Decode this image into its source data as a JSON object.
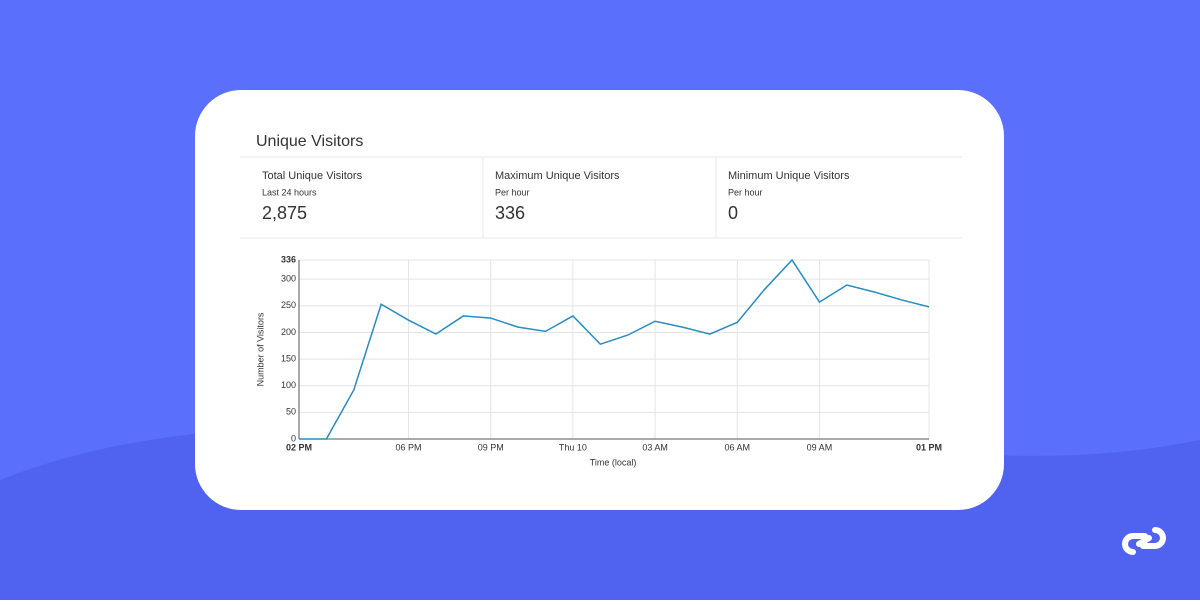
{
  "card": {
    "title": "Unique Visitors",
    "stats": [
      {
        "title": "Total Unique Visitors",
        "subtitle": "Last 24 hours",
        "value": "2,875"
      },
      {
        "title": "Maximum Unique Visitors",
        "subtitle": "Per hour",
        "value": "336"
      },
      {
        "title": "Minimum Unique Visitors",
        "subtitle": "Per hour",
        "value": "0"
      }
    ]
  },
  "chart_data": {
    "type": "line",
    "xlabel": "Time (local)",
    "ylabel": "Number of Visitors",
    "categories": [
      "02 PM",
      null,
      null,
      null,
      "06 PM",
      null,
      null,
      "09 PM",
      null,
      null,
      "Thu 10",
      null,
      null,
      "03 AM",
      null,
      null,
      "06 AM",
      null,
      null,
      "09 AM",
      null,
      null,
      null,
      "01 PM"
    ],
    "series": [
      {
        "name": "Unique Visitors",
        "color": "#2a8bbf",
        "values": [
          0,
          0,
          92,
          253,
          223,
          197,
          231,
          227,
          210,
          202,
          231,
          178,
          195,
          221,
          210,
          197,
          219,
          281,
          336,
          257,
          289,
          276,
          261,
          248
        ]
      }
    ],
    "ylim": [
      0,
      336
    ],
    "yticks": [
      0,
      50,
      100,
      150,
      200,
      250,
      300,
      336
    ],
    "grid": true
  }
}
